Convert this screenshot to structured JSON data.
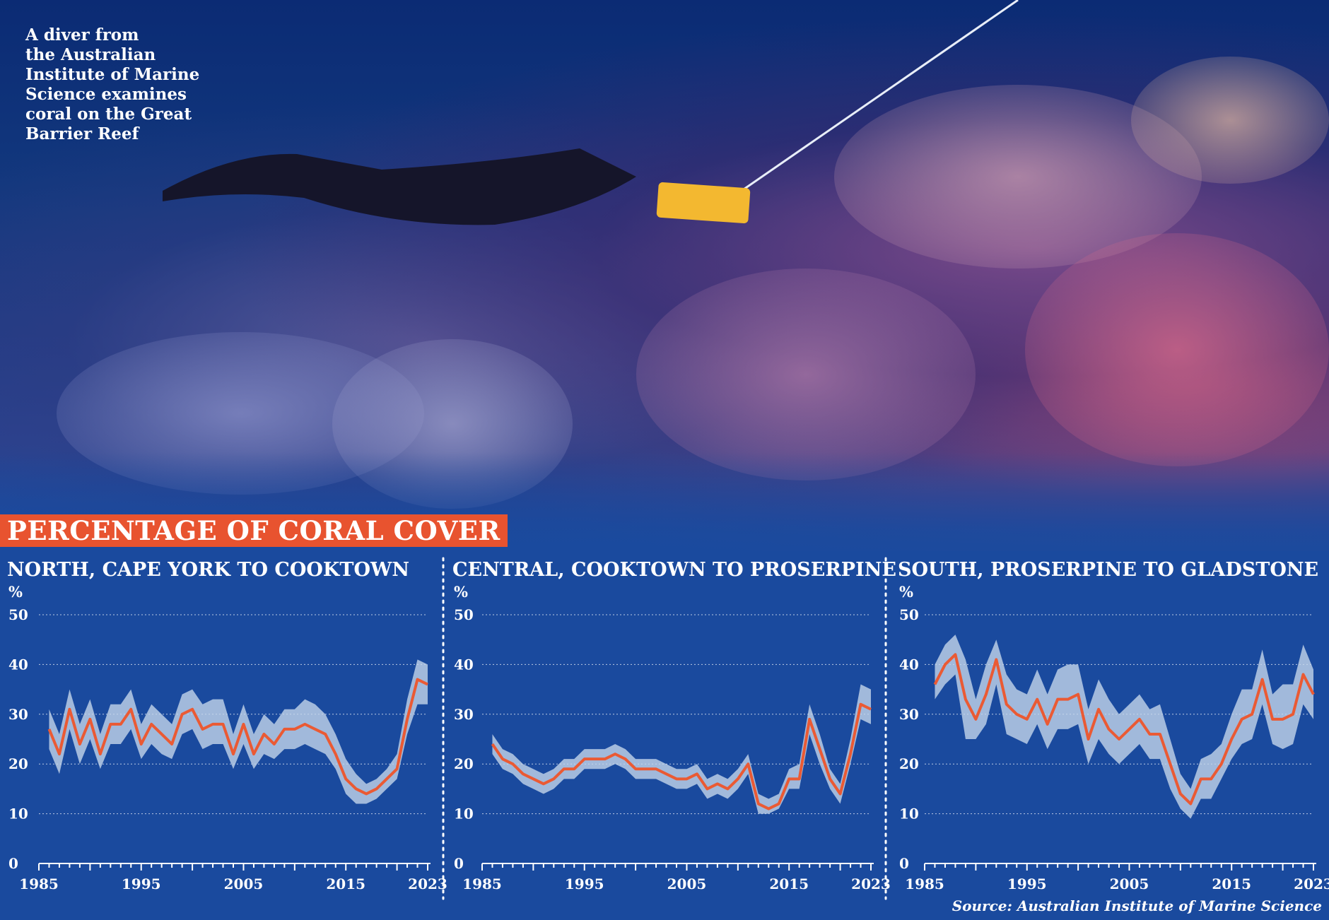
{
  "caption": "A diver from\nthe Australian\nInstitute of Marine\nScience examines\ncoral on the Great\nBarrier Reef",
  "banner_title": "PERCENTAGE OF CORAL COVER",
  "source": "Source: Australian Institute of Marine Science",
  "colors": {
    "line": "#ea5a34",
    "band": "#c8d8ec",
    "background": "#1a4a9e",
    "banner": "#e8532f"
  },
  "chart_data": [
    {
      "type": "line",
      "title": "NORTH, CAPE YORK TO COOKTOWN",
      "ylabel": "%",
      "ylim": [
        0,
        50
      ],
      "yticks": [
        0,
        10,
        20,
        30,
        40,
        50
      ],
      "xticks": [
        "1985",
        "1995",
        "2005",
        "2015",
        "2023"
      ],
      "xlim": [
        1985,
        2023
      ],
      "grid": true,
      "series": [
        {
          "x": [
            1986,
            1987,
            1988,
            1989,
            1990,
            1991,
            1992,
            1993,
            1994,
            1995,
            1996,
            1997,
            1998,
            1999,
            2000,
            2001,
            2002,
            2003,
            2004,
            2005,
            2006,
            2007,
            2008,
            2009,
            2010,
            2011,
            2012,
            2013,
            2014,
            2015,
            2016,
            2017,
            2018,
            2019,
            2020,
            2021,
            2022,
            2023
          ],
          "values": [
            27,
            22,
            31,
            24,
            29,
            22,
            28,
            28,
            31,
            24,
            28,
            26,
            24,
            30,
            31,
            27,
            28,
            28,
            22,
            28,
            22,
            26,
            24,
            27,
            27,
            28,
            27,
            26,
            22,
            17,
            15,
            14,
            15,
            17,
            19,
            29,
            37,
            36
          ],
          "lower": [
            23,
            18,
            27,
            20,
            25,
            19,
            24,
            24,
            27,
            21,
            24,
            22,
            21,
            26,
            27,
            23,
            24,
            24,
            19,
            24,
            19,
            22,
            21,
            23,
            23,
            24,
            23,
            22,
            19,
            14,
            12,
            12,
            13,
            15,
            17,
            26,
            32,
            32
          ],
          "upper": [
            31,
            26,
            35,
            28,
            33,
            26,
            32,
            32,
            35,
            28,
            32,
            30,
            28,
            34,
            35,
            32,
            33,
            33,
            26,
            32,
            26,
            30,
            28,
            31,
            31,
            33,
            32,
            30,
            26,
            21,
            18,
            16,
            17,
            19,
            22,
            33,
            41,
            40
          ]
        }
      ]
    },
    {
      "type": "line",
      "title": "CENTRAL, COOKTOWN TO PROSERPINE",
      "ylabel": "%",
      "ylim": [
        0,
        50
      ],
      "yticks": [
        0,
        10,
        20,
        30,
        40,
        50
      ],
      "xticks": [
        "1985",
        "1995",
        "2005",
        "2015",
        "2023"
      ],
      "xlim": [
        1985,
        2023
      ],
      "grid": true,
      "series": [
        {
          "x": [
            1986,
            1987,
            1988,
            1989,
            1990,
            1991,
            1992,
            1993,
            1994,
            1995,
            1996,
            1997,
            1998,
            1999,
            2000,
            2001,
            2002,
            2003,
            2004,
            2005,
            2006,
            2007,
            2008,
            2009,
            2010,
            2011,
            2012,
            2013,
            2014,
            2015,
            2016,
            2017,
            2018,
            2019,
            2020,
            2021,
            2022,
            2023
          ],
          "values": [
            24,
            21,
            20,
            18,
            17,
            16,
            17,
            19,
            19,
            21,
            21,
            21,
            22,
            21,
            19,
            19,
            19,
            18,
            17,
            17,
            18,
            15,
            16,
            15,
            17,
            20,
            12,
            11,
            12,
            17,
            17,
            29,
            23,
            17,
            14,
            22,
            32,
            31
          ],
          "lower": [
            22,
            19,
            18,
            16,
            15,
            14,
            15,
            17,
            17,
            19,
            19,
            19,
            20,
            19,
            17,
            17,
            17,
            16,
            15,
            15,
            16,
            13,
            14,
            13,
            15,
            18,
            10,
            10,
            11,
            15,
            15,
            26,
            20,
            15,
            12,
            20,
            29,
            28
          ],
          "upper": [
            26,
            23,
            22,
            20,
            19,
            18,
            19,
            21,
            21,
            23,
            23,
            23,
            24,
            23,
            21,
            21,
            21,
            20,
            19,
            19,
            20,
            17,
            18,
            17,
            19,
            22,
            14,
            13,
            14,
            19,
            20,
            32,
            26,
            19,
            16,
            25,
            36,
            35
          ]
        }
      ]
    },
    {
      "type": "line",
      "title": "SOUTH, PROSERPINE TO GLADSTONE",
      "ylabel": "%",
      "ylim": [
        0,
        50
      ],
      "yticks": [
        0,
        10,
        20,
        30,
        40,
        50
      ],
      "xticks": [
        "1985",
        "1995",
        "2005",
        "2015",
        "2023"
      ],
      "xlim": [
        1985,
        2023
      ],
      "grid": true,
      "series": [
        {
          "x": [
            1986,
            1987,
            1988,
            1989,
            1990,
            1991,
            1992,
            1993,
            1994,
            1995,
            1996,
            1997,
            1998,
            1999,
            2000,
            2001,
            2002,
            2003,
            2004,
            2005,
            2006,
            2007,
            2008,
            2009,
            2010,
            2011,
            2012,
            2013,
            2014,
            2015,
            2016,
            2017,
            2018,
            2019,
            2020,
            2021,
            2022,
            2023
          ],
          "values": [
            36,
            40,
            42,
            33,
            29,
            34,
            41,
            32,
            30,
            29,
            33,
            28,
            33,
            33,
            34,
            25,
            31,
            27,
            25,
            27,
            29,
            26,
            26,
            20,
            14,
            12,
            17,
            17,
            20,
            25,
            29,
            30,
            37,
            29,
            29,
            30,
            38,
            34
          ],
          "lower": [
            33,
            36,
            38,
            25,
            25,
            28,
            36,
            26,
            25,
            24,
            28,
            23,
            27,
            27,
            28,
            20,
            25,
            22,
            20,
            22,
            24,
            21,
            21,
            15,
            11,
            9,
            13,
            13,
            17,
            21,
            24,
            25,
            32,
            24,
            23,
            24,
            32,
            29
          ],
          "upper": [
            40,
            44,
            46,
            41,
            33,
            40,
            45,
            38,
            35,
            34,
            39,
            34,
            39,
            40,
            40,
            31,
            37,
            33,
            30,
            32,
            34,
            31,
            32,
            25,
            18,
            15,
            21,
            22,
            24,
            30,
            35,
            35,
            43,
            34,
            36,
            36,
            44,
            39
          ]
        }
      ]
    }
  ]
}
